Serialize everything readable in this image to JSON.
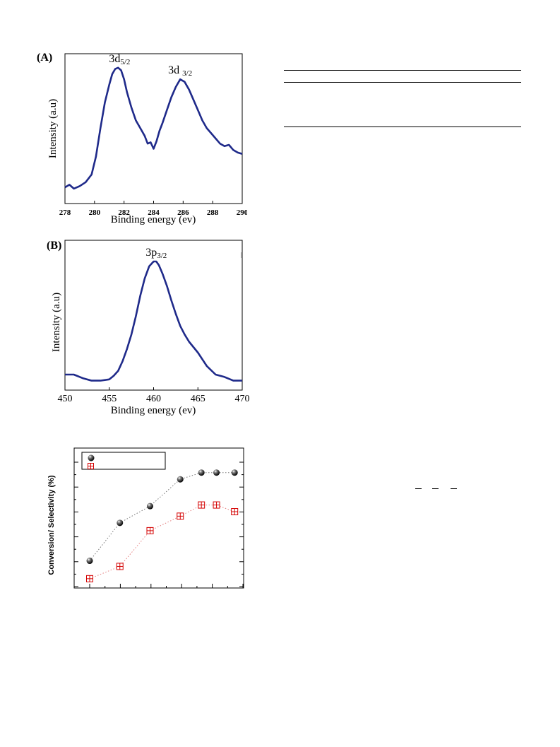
{
  "figureA": {
    "panel_label": "(A)",
    "chart_data": {
      "type": "line",
      "xlabel": "Binding energy (ev)",
      "ylabel": "Intensity (a.u)",
      "xlim": [
        278,
        290
      ],
      "xticks": [
        "278",
        "280",
        "282",
        "284",
        "286",
        "288",
        "290"
      ],
      "annotations": [
        {
          "text_main": "3d",
          "text_sub": "5/2",
          "x": 281.7
        },
        {
          "text_main": "3d ",
          "text_sub": "3/2",
          "x": 285.8
        }
      ],
      "color": "#1f2a8a",
      "series": [
        {
          "x": [
            278,
            278.3,
            278.6,
            279,
            279.4,
            279.8,
            280.1,
            280.4,
            280.7,
            281,
            281.2,
            281.4,
            281.6,
            281.8,
            282,
            282.2,
            282.5,
            282.8,
            283.1,
            283.4,
            283.6,
            283.8,
            284,
            284.2,
            284.4,
            284.6,
            284.9,
            285.2,
            285.5,
            285.8,
            286.1,
            286.4,
            286.7,
            287,
            287.3,
            287.6,
            287.9,
            288.2,
            288.5,
            288.8,
            289.1,
            289.4,
            289.7,
            290
          ],
          "y": [
            0.06,
            0.08,
            0.05,
            0.07,
            0.1,
            0.16,
            0.3,
            0.52,
            0.72,
            0.86,
            0.94,
            0.98,
            0.99,
            0.97,
            0.9,
            0.8,
            0.68,
            0.58,
            0.52,
            0.46,
            0.4,
            0.41,
            0.36,
            0.42,
            0.5,
            0.56,
            0.66,
            0.76,
            0.84,
            0.9,
            0.88,
            0.82,
            0.74,
            0.66,
            0.58,
            0.52,
            0.48,
            0.44,
            0.4,
            0.38,
            0.39,
            0.35,
            0.33,
            0.32
          ]
        }
      ]
    }
  },
  "figureB": {
    "panel_label": "(B)",
    "chart_data": {
      "type": "line",
      "xlabel": "Binding energy (ev)",
      "ylabel": "Intensity (a.u)",
      "xlim": [
        450,
        470
      ],
      "xticks": [
        "450",
        "455",
        "460",
        "465",
        "470"
      ],
      "annotations": [
        {
          "text_main": "3p",
          "text_sub": "3/2",
          "x": 460.3
        }
      ],
      "color": "#1f2a8a",
      "series": [
        {
          "x": [
            450,
            451,
            452,
            453,
            454,
            455,
            455.5,
            456,
            456.5,
            457,
            457.5,
            458,
            458.5,
            459,
            459.5,
            460,
            460.3,
            460.6,
            461,
            461.5,
            462,
            462.5,
            463,
            463.5,
            464,
            465,
            466,
            467,
            468,
            469,
            470
          ],
          "y": [
            0.07,
            0.07,
            0.04,
            0.02,
            0.02,
            0.03,
            0.06,
            0.1,
            0.18,
            0.28,
            0.4,
            0.55,
            0.72,
            0.86,
            0.96,
            1.0,
            1.0,
            0.97,
            0.9,
            0.8,
            0.68,
            0.57,
            0.47,
            0.4,
            0.34,
            0.25,
            0.14,
            0.07,
            0.05,
            0.02,
            0.02
          ]
        }
      ]
    }
  },
  "figureC": {
    "chart_data": {
      "type": "scatter",
      "ylabel": "Conversion/ Selectivity (%)",
      "series": [
        {
          "marker": "sphere",
          "color": "#000000",
          "points": [
            [
              1,
              0.18
            ],
            [
              2,
              0.52
            ],
            [
              3,
              0.67
            ],
            [
              4,
              0.91
            ],
            [
              4.7,
              0.97
            ],
            [
              5.2,
              0.97
            ],
            [
              5.8,
              0.97
            ]
          ]
        },
        {
          "marker": "boxed-plus",
          "color": "#d40000",
          "points": [
            [
              1,
              0.02
            ],
            [
              2,
              0.13
            ],
            [
              3,
              0.45
            ],
            [
              4,
              0.58
            ],
            [
              4.7,
              0.68
            ],
            [
              5.2,
              0.68
            ],
            [
              5.8,
              0.62
            ]
          ]
        }
      ],
      "legend_placement": "top-left"
    }
  }
}
